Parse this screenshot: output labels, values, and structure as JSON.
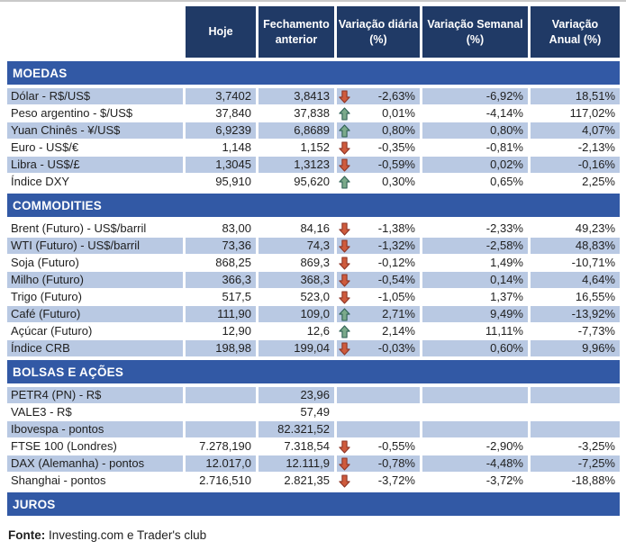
{
  "header": {
    "columns": [
      "Hoje",
      "Fechamento\nanterior",
      "Variação diária\n(%)",
      "Variação Semanal\n(%)",
      "Variação\nAnual (%)"
    ]
  },
  "sections": [
    {
      "title": "MOEDAS",
      "first_row_shaded": true,
      "rows": [
        {
          "label": "Dólar - R$/US$",
          "hoje": "3,7402",
          "fechamento": "3,8413",
          "trend": "down",
          "var_diaria": "-2,63%",
          "var_semanal": "-6,92%",
          "var_anual": "18,51%"
        },
        {
          "label": "Peso argentino - $/US$",
          "hoje": "37,840",
          "fechamento": "37,838",
          "trend": "up",
          "var_diaria": "0,01%",
          "var_semanal": "-4,14%",
          "var_anual": "117,02%"
        },
        {
          "label": "Yuan Chinês - ¥/US$",
          "hoje": "6,9239",
          "fechamento": "6,8689",
          "trend": "up",
          "var_diaria": "0,80%",
          "var_semanal": "0,80%",
          "var_anual": "4,07%"
        },
        {
          "label": "Euro - US$/€",
          "hoje": "1,148",
          "fechamento": "1,152",
          "trend": "down",
          "var_diaria": "-0,35%",
          "var_semanal": "-0,81%",
          "var_anual": "-2,13%"
        },
        {
          "label": "Libra - US$/£",
          "hoje": "1,3045",
          "fechamento": "1,3123",
          "trend": "down",
          "var_diaria": "-0,59%",
          "var_semanal": "0,02%",
          "var_anual": "-0,16%"
        },
        {
          "label": "Índice DXY",
          "hoje": "95,910",
          "fechamento": "95,620",
          "trend": "up",
          "var_diaria": "0,30%",
          "var_semanal": "0,65%",
          "var_anual": "2,25%"
        }
      ]
    },
    {
      "title": "COMMODITIES",
      "first_row_shaded": false,
      "rows": [
        {
          "label": "Brent (Futuro) - US$/barril",
          "hoje": "83,00",
          "fechamento": "84,16",
          "trend": "down",
          "var_diaria": "-1,38%",
          "var_semanal": "-2,33%",
          "var_anual": "49,23%"
        },
        {
          "label": "WTI (Futuro) - US$/barril",
          "hoje": "73,36",
          "fechamento": "74,3",
          "trend": "down",
          "var_diaria": "-1,32%",
          "var_semanal": "-2,58%",
          "var_anual": "48,83%"
        },
        {
          "label": "Soja (Futuro)",
          "hoje": "868,25",
          "fechamento": "869,3",
          "trend": "down",
          "var_diaria": "-0,12%",
          "var_semanal": "1,49%",
          "var_anual": "-10,71%"
        },
        {
          "label": "Milho (Futuro)",
          "hoje": "366,3",
          "fechamento": "368,3",
          "trend": "down",
          "var_diaria": "-0,54%",
          "var_semanal": "0,14%",
          "var_anual": "4,64%"
        },
        {
          "label": "Trigo (Futuro)",
          "hoje": "517,5",
          "fechamento": "523,0",
          "trend": "down",
          "var_diaria": "-1,05%",
          "var_semanal": "1,37%",
          "var_anual": "16,55%"
        },
        {
          "label": "Café (Futuro)",
          "hoje": "111,90",
          "fechamento": "109,0",
          "trend": "up",
          "var_diaria": "2,71%",
          "var_semanal": "9,49%",
          "var_anual": "-13,92%"
        },
        {
          "label": "Açúcar (Futuro)",
          "hoje": "12,90",
          "fechamento": "12,6",
          "trend": "up",
          "var_diaria": "2,14%",
          "var_semanal": "11,11%",
          "var_anual": "-7,73%"
        },
        {
          "label": "Índice CRB",
          "hoje": "198,98",
          "fechamento": "199,04",
          "trend": "down",
          "var_diaria": "-0,03%",
          "var_semanal": "0,60%",
          "var_anual": "9,96%"
        }
      ]
    },
    {
      "title": "BOLSAS E AÇÕES",
      "first_row_shaded": true,
      "rows": [
        {
          "label": "PETR4 (PN) - R$",
          "hoje": "",
          "fechamento": "23,96",
          "trend": null,
          "var_diaria": "",
          "var_semanal": "",
          "var_anual": ""
        },
        {
          "label": "VALE3 - R$",
          "hoje": "",
          "fechamento": "57,49",
          "trend": null,
          "var_diaria": "",
          "var_semanal": "",
          "var_anual": ""
        },
        {
          "label": "Ibovespa - pontos",
          "hoje": "",
          "fechamento": "82.321,52",
          "trend": null,
          "var_diaria": "",
          "var_semanal": "",
          "var_anual": ""
        },
        {
          "label": "FTSE 100 (Londres)",
          "hoje": "7.278,190",
          "fechamento": "7.318,54",
          "trend": "down",
          "var_diaria": "-0,55%",
          "var_semanal": "-2,90%",
          "var_anual": "-3,25%"
        },
        {
          "label": "DAX (Alemanha) - pontos",
          "hoje": "12.017,0",
          "fechamento": "12.111,9",
          "trend": "down",
          "var_diaria": "-0,78%",
          "var_semanal": "-4,48%",
          "var_anual": "-7,25%"
        },
        {
          "label": "Shanghai - pontos",
          "hoje": "2.716,510",
          "fechamento": "2.821,35",
          "trend": "down",
          "var_diaria": "-3,72%",
          "var_semanal": "-3,72%",
          "var_anual": "-18,88%"
        }
      ]
    },
    {
      "title": "JUROS",
      "first_row_shaded": true,
      "rows": []
    }
  ],
  "footer": {
    "source_label": "Fonte:",
    "source_text": " Investing.com e Trader's club"
  },
  "colors": {
    "header_bg": "#203a66",
    "section_bg": "#3259a5",
    "row_shaded_bg": "#b9c9e3",
    "text": "#1f1f1f",
    "top_line": "#c9c9c9",
    "up_arrow": "#7baa8b",
    "up_arrow_border": "#2f6155",
    "down_arrow": "#cf5b3d",
    "down_arrow_border": "#8e3526"
  }
}
